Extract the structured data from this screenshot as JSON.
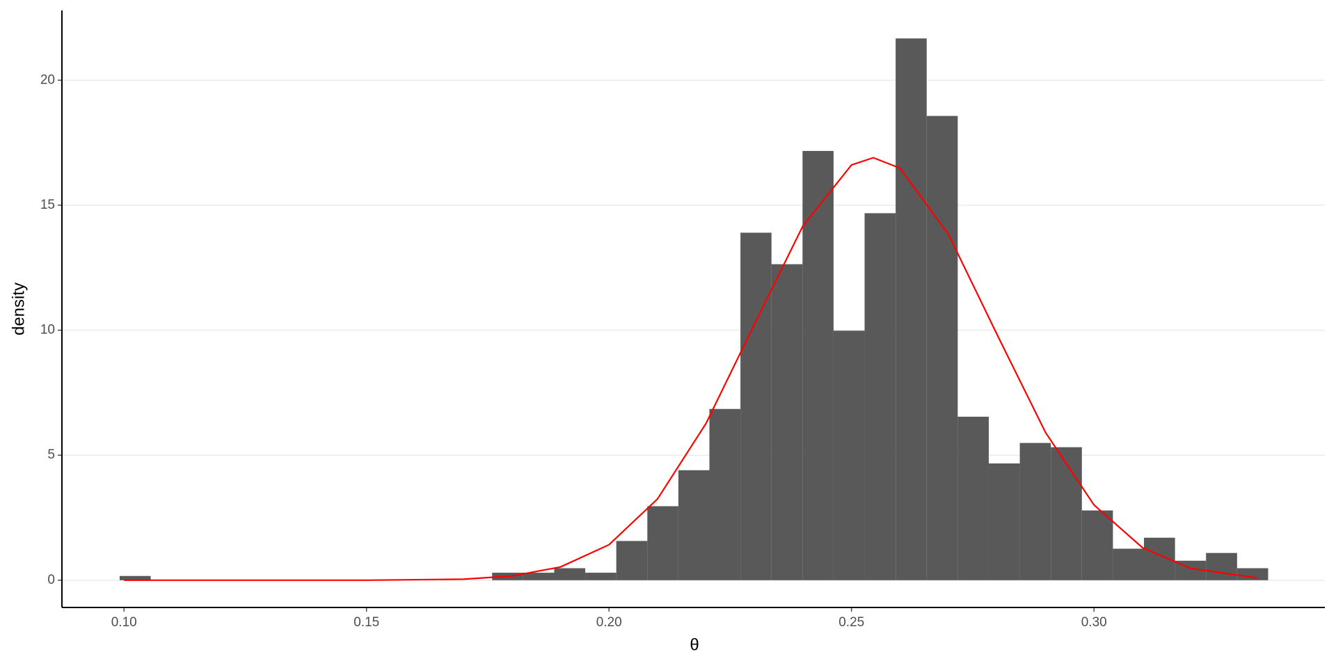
{
  "chart_data": {
    "type": "histogram",
    "x_label": "θ",
    "y_label": "density",
    "bins": [
      0.0991,
      0.1055,
      0.1119,
      0.1183,
      0.1247,
      0.1311,
      0.1375,
      0.1439,
      0.1503,
      0.1567,
      0.1631,
      0.1695,
      0.1759,
      0.1823,
      0.1887,
      0.1951,
      0.2015,
      0.2079,
      0.2143,
      0.2207,
      0.2271,
      0.2335,
      0.2399,
      0.2463,
      0.2527,
      0.2591,
      0.2655,
      0.2719,
      0.2783,
      0.2847,
      0.2911,
      0.2975,
      0.3039,
      0.3103,
      0.3167,
      0.3231,
      0.3295,
      0.3359
    ],
    "values": [
      0.17,
      0,
      0,
      0,
      0,
      0,
      0,
      0,
      0,
      0,
      0,
      0,
      0.3,
      0.3,
      0.48,
      0.3,
      1.57,
      2.96,
      4.4,
      6.85,
      13.9,
      12.64,
      17.17,
      9.98,
      14.68,
      21.67,
      18.57,
      6.54,
      4.67,
      5.49,
      5.32,
      2.79,
      1.26,
      1.7,
      0.78,
      1.09,
      0.48
    ],
    "color": "#595959",
    "curve": {
      "color": "#ff0000",
      "x": [
        0.1,
        0.15,
        0.17,
        0.18,
        0.19,
        0.2,
        0.21,
        0.22,
        0.23,
        0.24,
        0.25,
        0.2545,
        0.26,
        0.27,
        0.28,
        0.29,
        0.3,
        0.31,
        0.32,
        0.3337
      ],
      "values": [
        0,
        0,
        0.04,
        0.17,
        0.53,
        1.42,
        3.25,
        6.27,
        10.25,
        14.18,
        16.61,
        16.9,
        16.48,
        13.83,
        9.83,
        5.91,
        3.01,
        1.3,
        0.47,
        0.09
      ]
    },
    "xlim": [
      0.0872,
      0.3476
    ],
    "ylim": [
      -1.09,
      22.79
    ],
    "xticks": [
      {
        "value": 0.1,
        "label": "0.10"
      },
      {
        "value": 0.15,
        "label": "0.15"
      },
      {
        "value": 0.2,
        "label": "0.20"
      },
      {
        "value": 0.25,
        "label": "0.25"
      },
      {
        "value": 0.3,
        "label": "0.30"
      }
    ],
    "yticks": [
      0,
      5,
      10,
      15,
      20
    ],
    "grid": "y"
  }
}
